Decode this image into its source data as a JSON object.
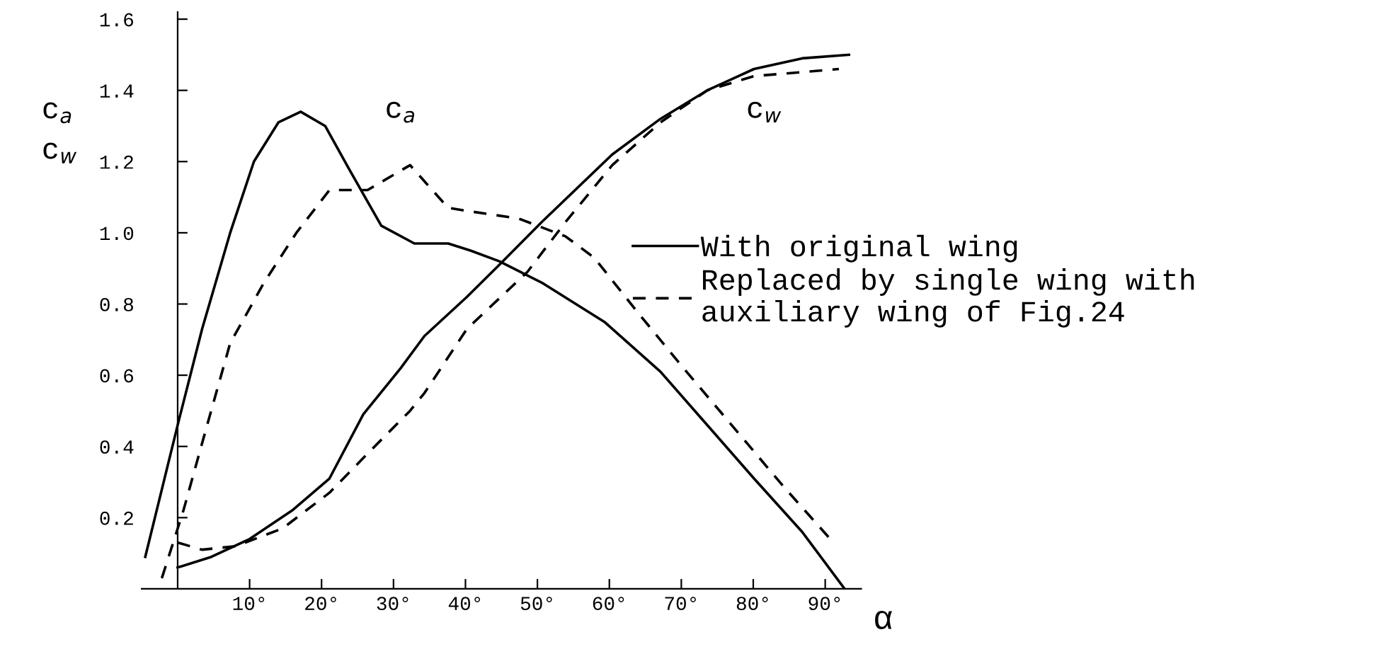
{
  "chart_data": {
    "type": "line",
    "ylabel": "c$_{a}$\nc$_{w}$",
    "xlabel": "α",
    "xlim": [
      -5,
      95
    ],
    "ylim": [
      0,
      1.62
    ],
    "xticks": [
      {
        "value": 10,
        "label": "10°"
      },
      {
        "value": 20,
        "label": "20°"
      },
      {
        "value": 30,
        "label": "30°"
      },
      {
        "value": 40,
        "label": "40°"
      },
      {
        "value": 50,
        "label": "50°"
      },
      {
        "value": 60,
        "label": "60°"
      },
      {
        "value": 70,
        "label": "70°"
      },
      {
        "value": 80,
        "label": "80°"
      },
      {
        "value": 90,
        "label": "90°"
      }
    ],
    "yticks": [
      0.2,
      0.4,
      0.6,
      0.8,
      {
        "value": 1.0,
        "label": "1.0"
      },
      1.2,
      1.4,
      1.6
    ],
    "grid": false,
    "legend": "right",
    "marker": "none",
    "annotations": [
      "c$_{a}$",
      "c$_{w}$"
    ],
    "series": [
      {
        "name": "With original wing",
        "color": "#000000",
        "line_style": "solid",
        "x": [
          -4.5,
          0,
          3.4,
          7.3,
          10.6,
          14,
          17.1,
          20.5,
          23.8,
          28.3,
          32.9,
          37.6,
          40.7,
          44.7,
          50.6,
          59.3,
          67.1,
          73.6,
          80.1,
          86.8,
          92.7
        ],
        "values": [
          0.09,
          0.46,
          0.73,
          1.0,
          1.2,
          1.31,
          1.34,
          1.3,
          1.18,
          1.02,
          0.97,
          0.97,
          0.95,
          0.92,
          0.86,
          0.75,
          0.61,
          0.46,
          0.31,
          0.16,
          0.0
        ]
      },
      {
        "name": "Replaced by single wing with\nauxiliary wing of Fig.24",
        "color": "#000000",
        "line_style": "dashed",
        "x": [
          -2.2,
          0.8,
          4.1,
          7.3,
          12,
          16.5,
          21.1,
          26.4,
          32.3,
          37.6,
          40.7,
          47.4,
          53.9,
          57.9,
          63.8,
          70.3,
          77,
          84.1,
          90.7
        ],
        "values": [
          0.03,
          0.22,
          0.46,
          0.69,
          0.86,
          1.0,
          1.12,
          1.12,
          1.19,
          1.07,
          1.06,
          1.04,
          0.99,
          0.93,
          0.78,
          0.62,
          0.46,
          0.29,
          0.14
        ]
      },
      {
        "color": "#000000",
        "line_style": "solid",
        "x": [
          0,
          4.7,
          10,
          15.9,
          21.1,
          25.8,
          31,
          34.3,
          40.2,
          44.7,
          50.6,
          60.4,
          67.1,
          73.6,
          80.1,
          86.8,
          93.3
        ],
        "values": [
          0.06,
          0.09,
          0.14,
          0.22,
          0.31,
          0.49,
          0.62,
          0.71,
          0.82,
          0.91,
          1.03,
          1.22,
          1.32,
          1.4,
          1.46,
          1.49,
          1.5
        ]
      },
      {
        "color": "#000000",
        "line_style": "dashed",
        "x": [
          0,
          3.4,
          8.1,
          14.6,
          21.1,
          26.4,
          32.3,
          34.3,
          40.2,
          48.6,
          53.9,
          60.4,
          67.1,
          73.6,
          80.1,
          91.9
        ],
        "values": [
          0.13,
          0.11,
          0.12,
          0.17,
          0.27,
          0.38,
          0.5,
          0.55,
          0.73,
          0.89,
          1.03,
          1.19,
          1.31,
          1.4,
          1.44,
          1.46
        ]
      }
    ]
  }
}
